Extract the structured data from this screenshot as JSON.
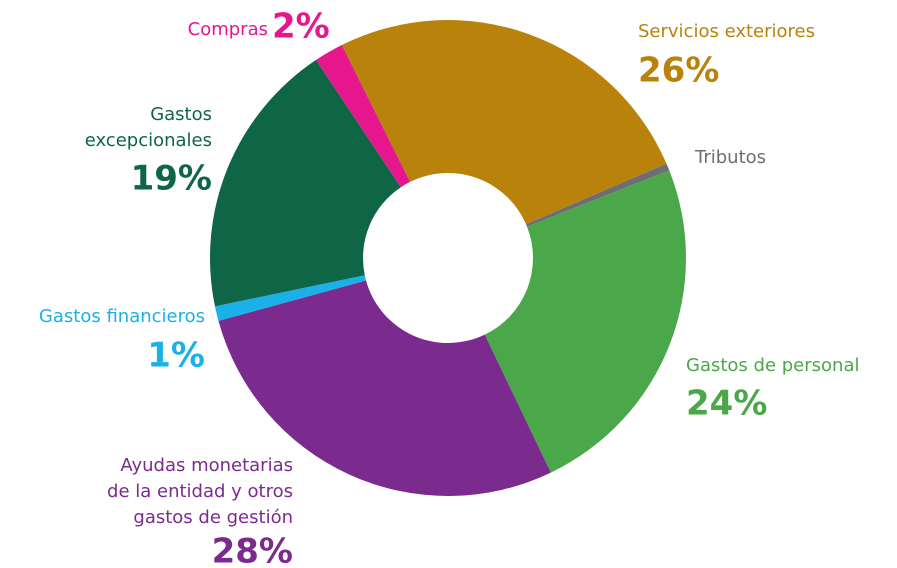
{
  "chart_data": {
    "type": "donut",
    "categories": [
      "Servicios exteriores",
      "Tributos",
      "Gastos de personal",
      "Ayudas monetarias\nde la entidad y otros\ngastos de gestión",
      "Gastos financieros",
      "Gastos\nexcepcionales",
      "Compras"
    ],
    "values": [
      26,
      0.5,
      24,
      28,
      1,
      19,
      2
    ],
    "value_labels": [
      "26%",
      null,
      "24%",
      "28%",
      "1%",
      "19%",
      "2%"
    ],
    "colors": [
      "#b8820b",
      "#6d6e71",
      "#4aa84a",
      "#7b2a8e",
      "#1ab0e8",
      "#0e6647",
      "#e6168c"
    ]
  }
}
